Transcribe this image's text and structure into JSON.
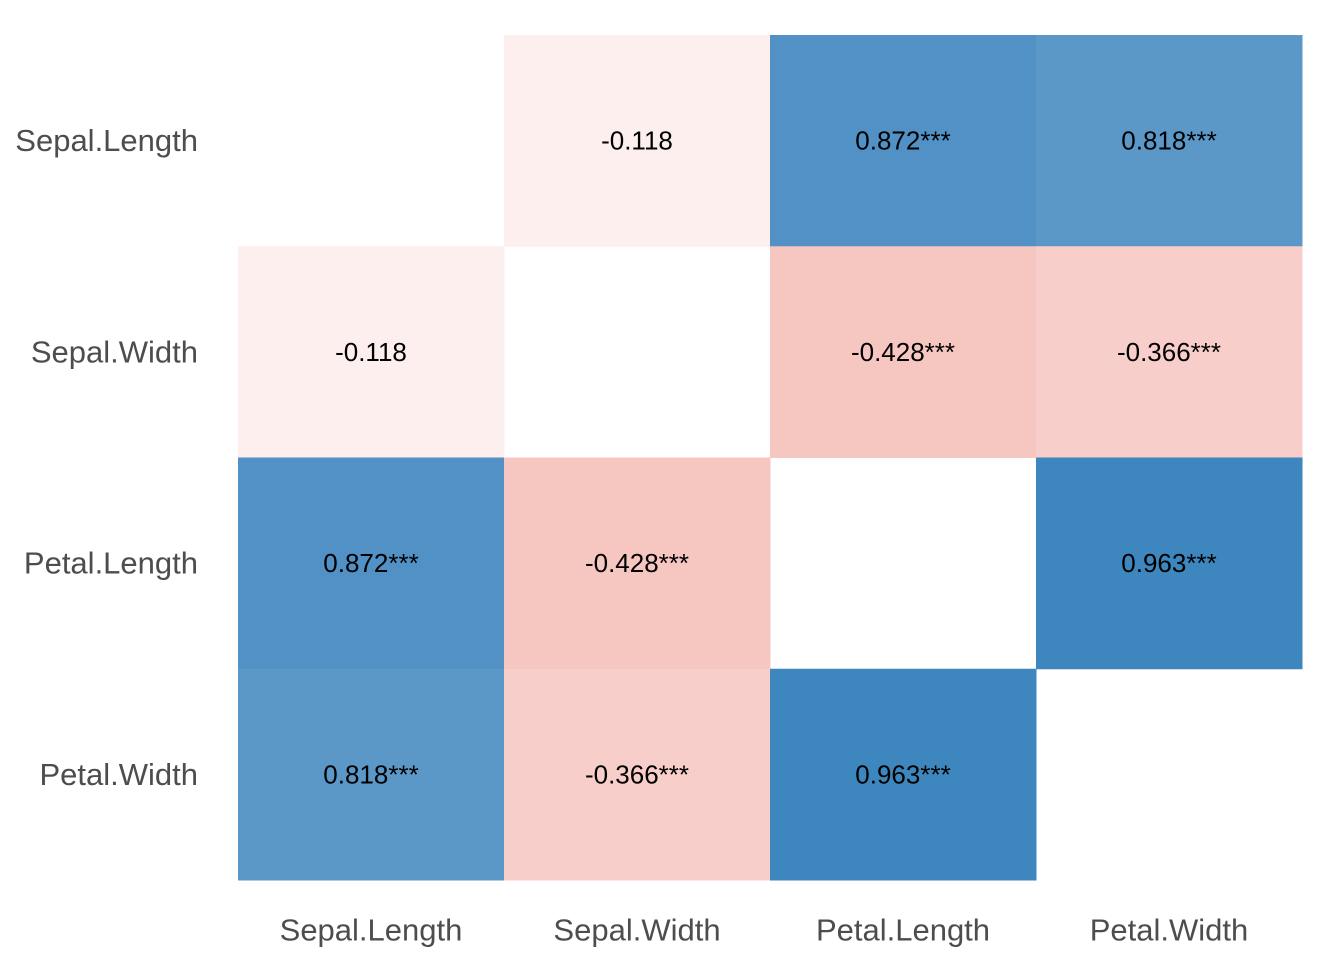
{
  "chart_data": {
    "type": "heatmap",
    "variables": [
      "Sepal.Length",
      "Sepal.Width",
      "Petal.Length",
      "Petal.Width"
    ],
    "rows": [
      "Sepal.Length",
      "Sepal.Width",
      "Petal.Length",
      "Petal.Width"
    ],
    "columns": [
      "Sepal.Length",
      "Sepal.Width",
      "Petal.Length",
      "Petal.Width"
    ],
    "cells": [
      [
        null,
        {
          "value": -0.118,
          "label": "-0.118"
        },
        {
          "value": 0.872,
          "label": "0.872***"
        },
        {
          "value": 0.818,
          "label": "0.818***"
        }
      ],
      [
        {
          "value": -0.118,
          "label": "-0.118"
        },
        null,
        {
          "value": -0.428,
          "label": "-0.428***"
        },
        {
          "value": -0.366,
          "label": "-0.366***"
        }
      ],
      [
        {
          "value": 0.872,
          "label": "0.872***"
        },
        {
          "value": -0.428,
          "label": "-0.428***"
        },
        null,
        {
          "value": 0.963,
          "label": "0.963***"
        }
      ],
      [
        {
          "value": 0.818,
          "label": "0.818***"
        },
        {
          "value": -0.366,
          "label": "-0.366***"
        },
        {
          "value": 0.963,
          "label": "0.963***"
        },
        null
      ]
    ],
    "color_scale": {
      "negative": "#e97a6b",
      "zero": "#ffffff",
      "positive": "#3781bc"
    },
    "title": "",
    "xlabel": "",
    "ylabel": "",
    "legend": "none",
    "grid": false
  }
}
